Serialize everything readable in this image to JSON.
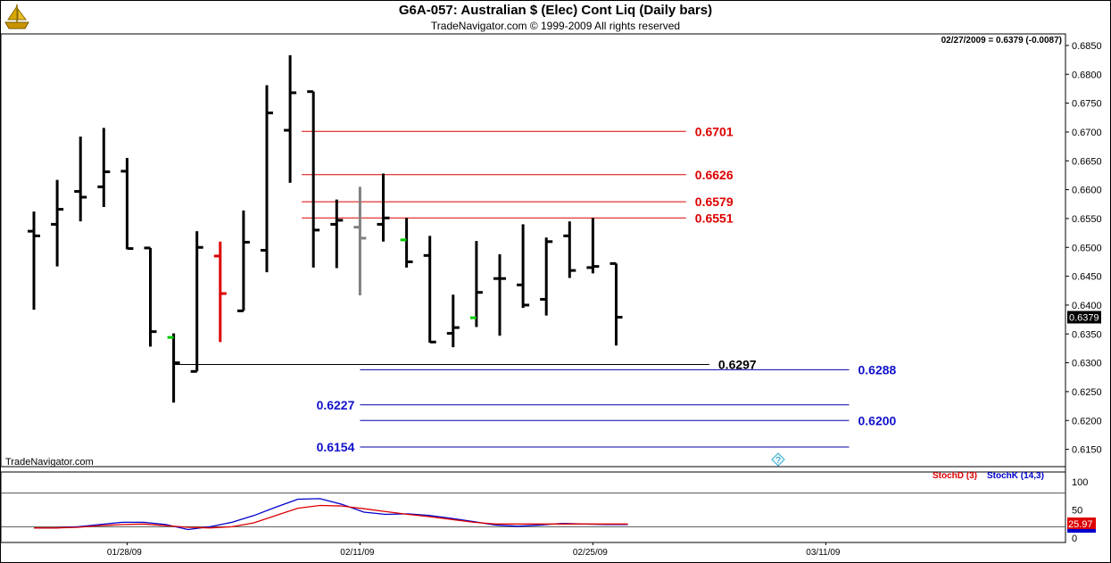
{
  "header": {
    "title": "G6A-057:  Australian $ (Elec) Cont Liq  (Daily bars)",
    "subtitle": "TradeNavigator.com © 1999-2009 All rights reserved"
  },
  "readout": "02/27/2009 = 0.6379 (-0.0087)",
  "watermark": "TradeNavigator.com",
  "help_glyph": "?",
  "logo_icon": "sailing-ship-icon",
  "colors": {
    "bar": "#000000",
    "bar_down": "#dd0000",
    "bar_neutral": "#808080",
    "tick_up": "#00cc00",
    "line_red": "#dd0000",
    "line_blue": "#0000aa",
    "label_red": "#dd0000",
    "label_blue": "#1111cc",
    "stoch_d": "#dd0000",
    "stoch_k": "#0000cc",
    "last_price_bg": "#000000",
    "stoch_value_bg": "#dd0000"
  },
  "chart_data": {
    "type": "ohlc",
    "price_axis": {
      "ticks": [
        "0.6850",
        "0.6800",
        "0.6750",
        "0.6700",
        "0.6650",
        "0.6600",
        "0.6550",
        "0.6500",
        "0.6450",
        "0.6400",
        "0.6350",
        "0.6300",
        "0.6250",
        "0.6200",
        "0.6150"
      ],
      "ylim": [
        0.612,
        0.687
      ],
      "last_price_label": "0.6379"
    },
    "x_axis": {
      "ticks": [
        "01/28/09",
        "02/11/09",
        "02/25/09",
        "03/11/09"
      ],
      "tick_index": [
        4,
        14,
        24,
        34
      ]
    },
    "bars": [
      {
        "i": 0,
        "o": 0.6528,
        "h": 0.6562,
        "l": 0.6392,
        "c": 0.652,
        "color": "bar"
      },
      {
        "i": 1,
        "o": 0.654,
        "h": 0.6617,
        "l": 0.6467,
        "c": 0.6566,
        "color": "bar"
      },
      {
        "i": 2,
        "o": 0.6597,
        "h": 0.6692,
        "l": 0.6545,
        "c": 0.6587,
        "color": "bar"
      },
      {
        "i": 3,
        "o": 0.6605,
        "h": 0.6707,
        "l": 0.657,
        "c": 0.6631,
        "color": "bar"
      },
      {
        "i": 4,
        "o": 0.6632,
        "h": 0.6655,
        "l": 0.6497,
        "c": 0.6498,
        "color": "bar"
      },
      {
        "i": 5,
        "o": 0.6499,
        "h": 0.6499,
        "l": 0.6328,
        "c": 0.6354,
        "color": "bar"
      },
      {
        "i": 6,
        "o": 0.6344,
        "h": 0.6351,
        "l": 0.6231,
        "c": 0.63,
        "color": "bar",
        "open_tick": "tick_up"
      },
      {
        "i": 7,
        "o": 0.6285,
        "h": 0.6528,
        "l": 0.6285,
        "c": 0.65,
        "color": "bar"
      },
      {
        "i": 8,
        "o": 0.6485,
        "h": 0.651,
        "l": 0.6336,
        "c": 0.642,
        "color": "bar_down"
      },
      {
        "i": 9,
        "o": 0.639,
        "h": 0.6564,
        "l": 0.639,
        "c": 0.6509,
        "color": "bar"
      },
      {
        "i": 10,
        "o": 0.6495,
        "h": 0.6781,
        "l": 0.6457,
        "c": 0.6733,
        "color": "bar"
      },
      {
        "i": 11,
        "o": 0.6703,
        "h": 0.6833,
        "l": 0.6612,
        "c": 0.6768,
        "color": "bar"
      },
      {
        "i": 12,
        "o": 0.677,
        "h": 0.677,
        "l": 0.6465,
        "c": 0.653,
        "color": "bar"
      },
      {
        "i": 13,
        "o": 0.654,
        "h": 0.6583,
        "l": 0.6464,
        "c": 0.6547,
        "color": "bar"
      },
      {
        "i": 14,
        "o": 0.6535,
        "h": 0.6605,
        "l": 0.6417,
        "c": 0.6516,
        "color": "bar_neutral"
      },
      {
        "i": 15,
        "o": 0.654,
        "h": 0.6628,
        "l": 0.651,
        "c": 0.6551,
        "color": "bar"
      },
      {
        "i": 16,
        "o": 0.6513,
        "h": 0.6551,
        "l": 0.6465,
        "c": 0.6475,
        "color": "bar",
        "open_tick": "tick_up"
      },
      {
        "i": 17,
        "o": 0.6486,
        "h": 0.652,
        "l": 0.6335,
        "c": 0.6336,
        "color": "bar"
      },
      {
        "i": 18,
        "o": 0.6351,
        "h": 0.6418,
        "l": 0.6327,
        "c": 0.6361,
        "color": "bar"
      },
      {
        "i": 19,
        "o": 0.6378,
        "h": 0.6511,
        "l": 0.6362,
        "c": 0.6422,
        "color": "bar",
        "open_tick": "tick_up"
      },
      {
        "i": 20,
        "o": 0.6446,
        "h": 0.6488,
        "l": 0.6347,
        "c": 0.6446,
        "color": "bar"
      },
      {
        "i": 21,
        "o": 0.6435,
        "h": 0.654,
        "l": 0.6395,
        "c": 0.64,
        "color": "bar"
      },
      {
        "i": 22,
        "o": 0.641,
        "h": 0.6517,
        "l": 0.6382,
        "c": 0.651,
        "color": "bar"
      },
      {
        "i": 23,
        "o": 0.652,
        "h": 0.6545,
        "l": 0.6447,
        "c": 0.646,
        "color": "bar"
      },
      {
        "i": 24,
        "o": 0.6465,
        "h": 0.6551,
        "l": 0.6455,
        "c": 0.6467,
        "color": "bar"
      },
      {
        "i": 25,
        "o": 0.6472,
        "h": 0.6472,
        "l": 0.633,
        "c": 0.6379,
        "color": "bar"
      }
    ],
    "levels": [
      {
        "value": 0.6701,
        "label": "0.6701",
        "color": "line_red",
        "x_from": 11.5,
        "x_to": 28.0,
        "label_pos": "right"
      },
      {
        "value": 0.6626,
        "label": "0.6626",
        "color": "line_red",
        "x_from": 11.5,
        "x_to": 28.0,
        "label_pos": "right"
      },
      {
        "value": 0.6579,
        "label": "0.6579",
        "color": "line_red",
        "x_from": 11.5,
        "x_to": 28.0,
        "label_pos": "right"
      },
      {
        "value": 0.6551,
        "label": "0.6551",
        "color": "line_red",
        "x_from": 11.5,
        "x_to": 28.0,
        "label_pos": "right"
      },
      {
        "value": 0.6297,
        "label": "0.6297",
        "color": "bar",
        "x_from": 6.0,
        "x_to": 29.0,
        "label_pos": "right"
      },
      {
        "value": 0.6288,
        "label": "0.6288",
        "color": "line_blue",
        "x_from": 14.0,
        "x_to": 35.0,
        "label_pos": "right"
      },
      {
        "value": 0.6227,
        "label": "0.6227",
        "color": "line_blue",
        "x_from": 14.0,
        "x_to": 35.0,
        "label_pos": "left"
      },
      {
        "value": 0.62,
        "label": "0.6200",
        "color": "line_blue",
        "x_from": 14.0,
        "x_to": 35.0,
        "label_pos": "right"
      },
      {
        "value": 0.6154,
        "label": "0.6154",
        "color": "line_blue",
        "x_from": 14.0,
        "x_to": 35.0,
        "label_pos": "left"
      }
    ],
    "stochastic": {
      "ticks": [
        "100",
        "50",
        "0"
      ],
      "ylim": [
        0,
        100
      ],
      "levels": [
        80,
        20
      ],
      "value_label": "25.97",
      "d_name": "StochD (3)",
      "k_name": "StochK (14,3)",
      "d_values": [
        18,
        18,
        19,
        22,
        24,
        25,
        22,
        19,
        18,
        20,
        27,
        40,
        53,
        58,
        57,
        52,
        47,
        42,
        38,
        33,
        28,
        25,
        25,
        25,
        25,
        25,
        25,
        25
      ],
      "k_values": [
        18,
        18,
        20,
        24,
        28,
        28,
        24,
        15,
        20,
        28,
        40,
        55,
        69,
        70,
        60,
        46,
        42,
        43,
        40,
        35,
        29,
        23,
        21,
        23,
        26,
        25,
        24,
        24
      ],
      "x_start": 0.0,
      "x_end": 25.5
    }
  }
}
